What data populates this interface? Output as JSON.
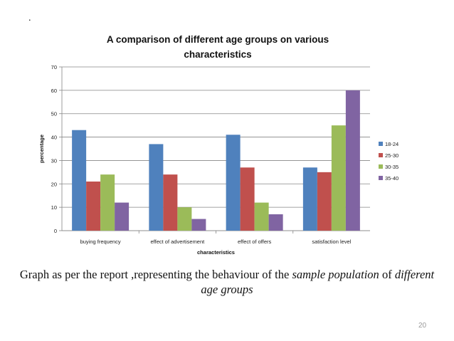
{
  "slide": {
    "mark": ".",
    "caption_part1": "Graph as per the report ,representing the behaviour of the ",
    "caption_emph1": "sample population",
    "caption_part2": " of ",
    "caption_emph2": "different age groups",
    "page_number": "20"
  },
  "chart_data": {
    "type": "bar",
    "title_line1": "A comparison of different age groups on various",
    "title_line2": "characteristics",
    "xlabel": "characteristics",
    "ylabel": "percentage",
    "ylim": [
      0,
      70
    ],
    "yticks": [
      0,
      10,
      20,
      30,
      40,
      50,
      60,
      70
    ],
    "grid": true,
    "legend_position": "right",
    "categories": [
      "buying frequency",
      "effect of advertisement",
      "effect of offers",
      "satisfaction level"
    ],
    "series": [
      {
        "name": "18-24",
        "color": "#4F81BD",
        "values": [
          43,
          37,
          41,
          27
        ]
      },
      {
        "name": "25-30",
        "color": "#C0504D",
        "values": [
          21,
          24,
          27,
          25
        ]
      },
      {
        "name": "30-35",
        "color": "#9BBB59",
        "values": [
          24,
          10,
          12,
          45
        ]
      },
      {
        "name": "35-40",
        "color": "#8064A2",
        "values": [
          12,
          5,
          7,
          60
        ]
      }
    ]
  }
}
